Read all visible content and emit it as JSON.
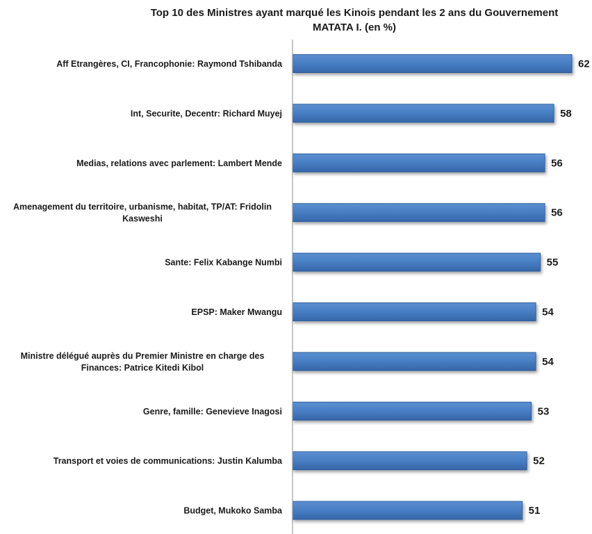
{
  "chart_data": {
    "type": "bar",
    "orientation": "horizontal",
    "title_lines": [
      "Top 10 des Ministres ayant marqué les Kinois pendant les 2 ans du Gouvernement",
      "MATATA  I.      (en %)"
    ],
    "categories": [
      [
        "Aff Etrangères, CI, Francophonie: Raymond Tshibanda"
      ],
      [
        "Int, Securite, Decentr: Richard Muyej"
      ],
      [
        "Medias, relations avec parlement: Lambert Mende"
      ],
      [
        "Amenagement du territoire, urbanisme,  habitat, TP/AT: Fridolin",
        "Kasweshi"
      ],
      [
        "Sante: Felix Kabange Numbi"
      ],
      [
        "EPSP: Maker Mwangu"
      ],
      [
        "Ministre délégué auprès du Premier Ministre en charge des",
        "Finances: Patrice Kitedi Kibol"
      ],
      [
        "Genre, famille: Genevieve Inagosi"
      ],
      [
        "Transport et voies de communications: Justin Kalumba"
      ],
      [
        "Budget, Mukoko Samba"
      ]
    ],
    "values": [
      62,
      58,
      56,
      56,
      55,
      54,
      54,
      53,
      52,
      51
    ],
    "value_labels": [
      "62",
      "58",
      "56",
      "56",
      "55",
      "54",
      "54",
      "53",
      "52",
      "51"
    ],
    "xlim": [
      0,
      62
    ],
    "bar_color": "#4F81BD",
    "bar_color_dark": "#2E5F9E",
    "grid": false,
    "legend": "none"
  }
}
